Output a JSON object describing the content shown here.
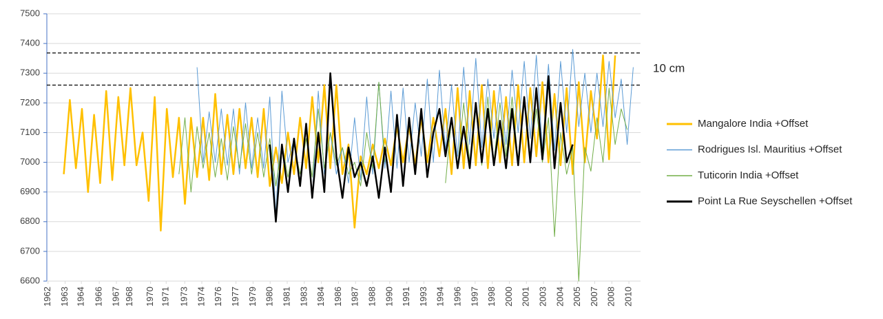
{
  "chart_data": {
    "type": "line",
    "x": [
      1963.5,
      1964,
      1964.5,
      1965,
      1965.5,
      1966,
      1966.5,
      1967,
      1967.5,
      1968,
      1968.5,
      1969,
      1969.5,
      1970,
      1970.5,
      1971,
      1971.5,
      1972,
      1972.5,
      1973,
      1973.5,
      1974,
      1974.5,
      1975,
      1975.5,
      1976,
      1976.5,
      1977,
      1977.5,
      1978,
      1978.5,
      1979,
      1979.5,
      1980,
      1980.5,
      1981,
      1981.5,
      1982,
      1982.5,
      1983,
      1983.5,
      1984,
      1984.5,
      1985,
      1985.5,
      1986,
      1986.5,
      1987,
      1987.5,
      1988,
      1988.5,
      1989,
      1989.5,
      1990,
      1990.5,
      1991,
      1991.5,
      1992,
      1992.5,
      1993,
      1993.5,
      1994,
      1994.5,
      1995,
      1995.5,
      1996,
      1996.5,
      1997,
      1997.5,
      1998,
      1998.5,
      1999,
      1999.5,
      2000,
      2000.5,
      2001,
      2001.5,
      2002,
      2002.5,
      2003,
      2003.5,
      2004,
      2004.5,
      2005,
      2005.5,
      2006,
      2006.5,
      2007,
      2007.5,
      2008,
      2008.5,
      2009,
      2009.5,
      2010,
      2010.5
    ],
    "series": [
      {
        "name": "Mangalore India +Offset",
        "color": "#ffc000",
        "width": 2.5,
        "values": [
          6960,
          7210,
          6980,
          7180,
          6900,
          7160,
          6930,
          7240,
          6940,
          7220,
          6990,
          7250,
          6990,
          7100,
          6870,
          7220,
          6770,
          7180,
          6950,
          7150,
          6860,
          7150,
          6950,
          7150,
          6940,
          7230,
          6960,
          7160,
          6960,
          7180,
          6980,
          7150,
          6950,
          7180,
          6920,
          7050,
          6930,
          7100,
          6960,
          7150,
          6980,
          7220,
          7000,
          7260,
          6980,
          7260,
          6960,
          7060,
          6780,
          7020,
          6960,
          7060,
          6980,
          7080,
          6990,
          7120,
          7000,
          7120,
          6990,
          7150,
          7000,
          7150,
          7020,
          7180,
          6960,
          7250,
          6980,
          7240,
          6990,
          7260,
          6980,
          7240,
          7000,
          7220,
          6990,
          7260,
          7000,
          7250,
          7020,
          7270,
          7000,
          7230,
          6990,
          7250,
          6960,
          7270,
          7000,
          7240,
          7080,
          7360,
          7010,
          7360,
          null,
          null,
          null
        ]
      },
      {
        "name": "Rodrigues Isl. Mauritius +Offset",
        "color": "#5b9bd5",
        "width": 1,
        "values": [
          null,
          null,
          null,
          null,
          null,
          null,
          null,
          null,
          null,
          null,
          null,
          null,
          null,
          null,
          null,
          null,
          null,
          null,
          null,
          null,
          null,
          null,
          7320,
          7000,
          7170,
          7000,
          7180,
          6990,
          7180,
          6960,
          7200,
          6980,
          7150,
          6980,
          7220,
          6820,
          7240,
          7000,
          7080,
          6920,
          7120,
          6880,
          7240,
          6960,
          7100,
          6960,
          7050,
          6930,
          7150,
          6940,
          7220,
          6960,
          7270,
          6980,
          7240,
          6980,
          7250,
          7000,
          7200,
          7020,
          7280,
          7000,
          7310,
          7040,
          7260,
          7020,
          7320,
          7060,
          7350,
          7050,
          7280,
          7080,
          7260,
          7060,
          7310,
          7100,
          7340,
          7080,
          7360,
          7040,
          7330,
          7040,
          7340,
          7100,
          7380,
          7120,
          7300,
          7100,
          7300,
          7120,
          7340,
          7150,
          7280,
          7060,
          7320
        ]
      },
      {
        "name": "Tuticorin India +Offset",
        "color": "#70ad47",
        "width": 1,
        "values": [
          null,
          null,
          null,
          null,
          null,
          null,
          null,
          null,
          null,
          null,
          null,
          null,
          null,
          null,
          null,
          null,
          null,
          null,
          null,
          6960,
          7150,
          6900,
          7120,
          6980,
          7100,
          6950,
          7080,
          6940,
          7120,
          6980,
          7130,
          6960,
          7100,
          6950,
          7080,
          6920,
          7060,
          6950,
          7060,
          6960,
          7080,
          6950,
          7180,
          6980,
          7100,
          6990,
          7050,
          6960,
          7000,
          6920,
          7100,
          6980,
          7270,
          7000,
          null,
          null,
          null,
          null,
          null,
          null,
          null,
          null,
          null,
          6930,
          7150,
          6980,
          7200,
          7000,
          7180,
          6990,
          7220,
          7000,
          7200,
          7020,
          7220,
          7000,
          7200,
          7020,
          7180,
          7000,
          7150,
          6750,
          7100,
          6960,
          7050,
          6600,
          7050,
          6970,
          7150,
          7000,
          7250,
          7060,
          7180,
          7110,
          null
        ]
      },
      {
        "name": "Point La Rue Seyschellen +Offset",
        "color": "#000000",
        "width": 2.5,
        "values": [
          null,
          null,
          null,
          null,
          null,
          null,
          null,
          null,
          null,
          null,
          null,
          null,
          null,
          null,
          null,
          null,
          null,
          null,
          null,
          null,
          null,
          null,
          null,
          null,
          null,
          null,
          null,
          null,
          null,
          null,
          null,
          null,
          null,
          null,
          7060,
          6800,
          7060,
          6900,
          7080,
          6920,
          7130,
          6880,
          7100,
          6900,
          7300,
          7020,
          6880,
          7050,
          6950,
          7000,
          6920,
          7020,
          6880,
          7050,
          6900,
          7160,
          6920,
          7150,
          6960,
          7180,
          6950,
          7100,
          7180,
          7020,
          7150,
          6980,
          7120,
          6980,
          7200,
          7000,
          7180,
          6990,
          7140,
          6980,
          7180,
          6990,
          7220,
          7000,
          7250,
          7010,
          7290,
          6980,
          7200,
          7000,
          7060,
          null,
          null,
          null,
          null,
          null,
          null,
          null,
          null,
          null,
          null
        ]
      }
    ],
    "ylim": [
      6600,
      7500
    ],
    "yticks": [
      6600,
      6700,
      6800,
      6900,
      7000,
      7100,
      7200,
      7300,
      7400,
      7500
    ],
    "xlim": [
      1962.1,
      2011.1
    ],
    "xticks": [
      {
        "value": 1962.2,
        "label": "1962"
      },
      {
        "value": 1963.61,
        "label": "1963"
      },
      {
        "value": 1964.95,
        "label": "1964"
      },
      {
        "value": 1966.43,
        "label": "1966"
      },
      {
        "value": 1967.84,
        "label": "1967"
      },
      {
        "value": 1968.95,
        "label": "1968"
      },
      {
        "value": 1970.66,
        "label": "1970"
      },
      {
        "value": 1971.95,
        "label": "1971"
      },
      {
        "value": 1973.48,
        "label": "1973"
      },
      {
        "value": 1974.89,
        "label": "1974"
      },
      {
        "value": 1976.3,
        "label": "1976"
      },
      {
        "value": 1977.71,
        "label": "1977"
      },
      {
        "value": 1979.12,
        "label": "1979"
      },
      {
        "value": 1980.53,
        "label": "1980"
      },
      {
        "value": 1981.94,
        "label": "1981"
      },
      {
        "value": 1983.35,
        "label": "1983"
      },
      {
        "value": 1984.76,
        "label": "1984"
      },
      {
        "value": 1986.17,
        "label": "1986"
      },
      {
        "value": 1987.58,
        "label": "1987"
      },
      {
        "value": 1988.99,
        "label": "1988"
      },
      {
        "value": 1990.4,
        "label": "1990"
      },
      {
        "value": 1991.81,
        "label": "1991"
      },
      {
        "value": 1993.22,
        "label": "1993"
      },
      {
        "value": 1994.63,
        "label": "1994"
      },
      {
        "value": 1996.04,
        "label": "1996"
      },
      {
        "value": 1997.45,
        "label": "1997"
      },
      {
        "value": 1998.86,
        "label": "1998"
      },
      {
        "value": 2000.27,
        "label": "2000"
      },
      {
        "value": 2001.68,
        "label": "2001"
      },
      {
        "value": 2003.09,
        "label": "2003"
      },
      {
        "value": 2004.5,
        "label": "2004"
      },
      {
        "value": 2005.91,
        "label": "2005"
      },
      {
        "value": 2007.32,
        "label": "2007"
      },
      {
        "value": 2008.73,
        "label": "2008"
      },
      {
        "value": 2010.14,
        "label": "2010"
      }
    ],
    "grid": true,
    "reference_lines": [
      7368,
      7260
    ],
    "annotation": "10 cm",
    "legend": "right"
  }
}
